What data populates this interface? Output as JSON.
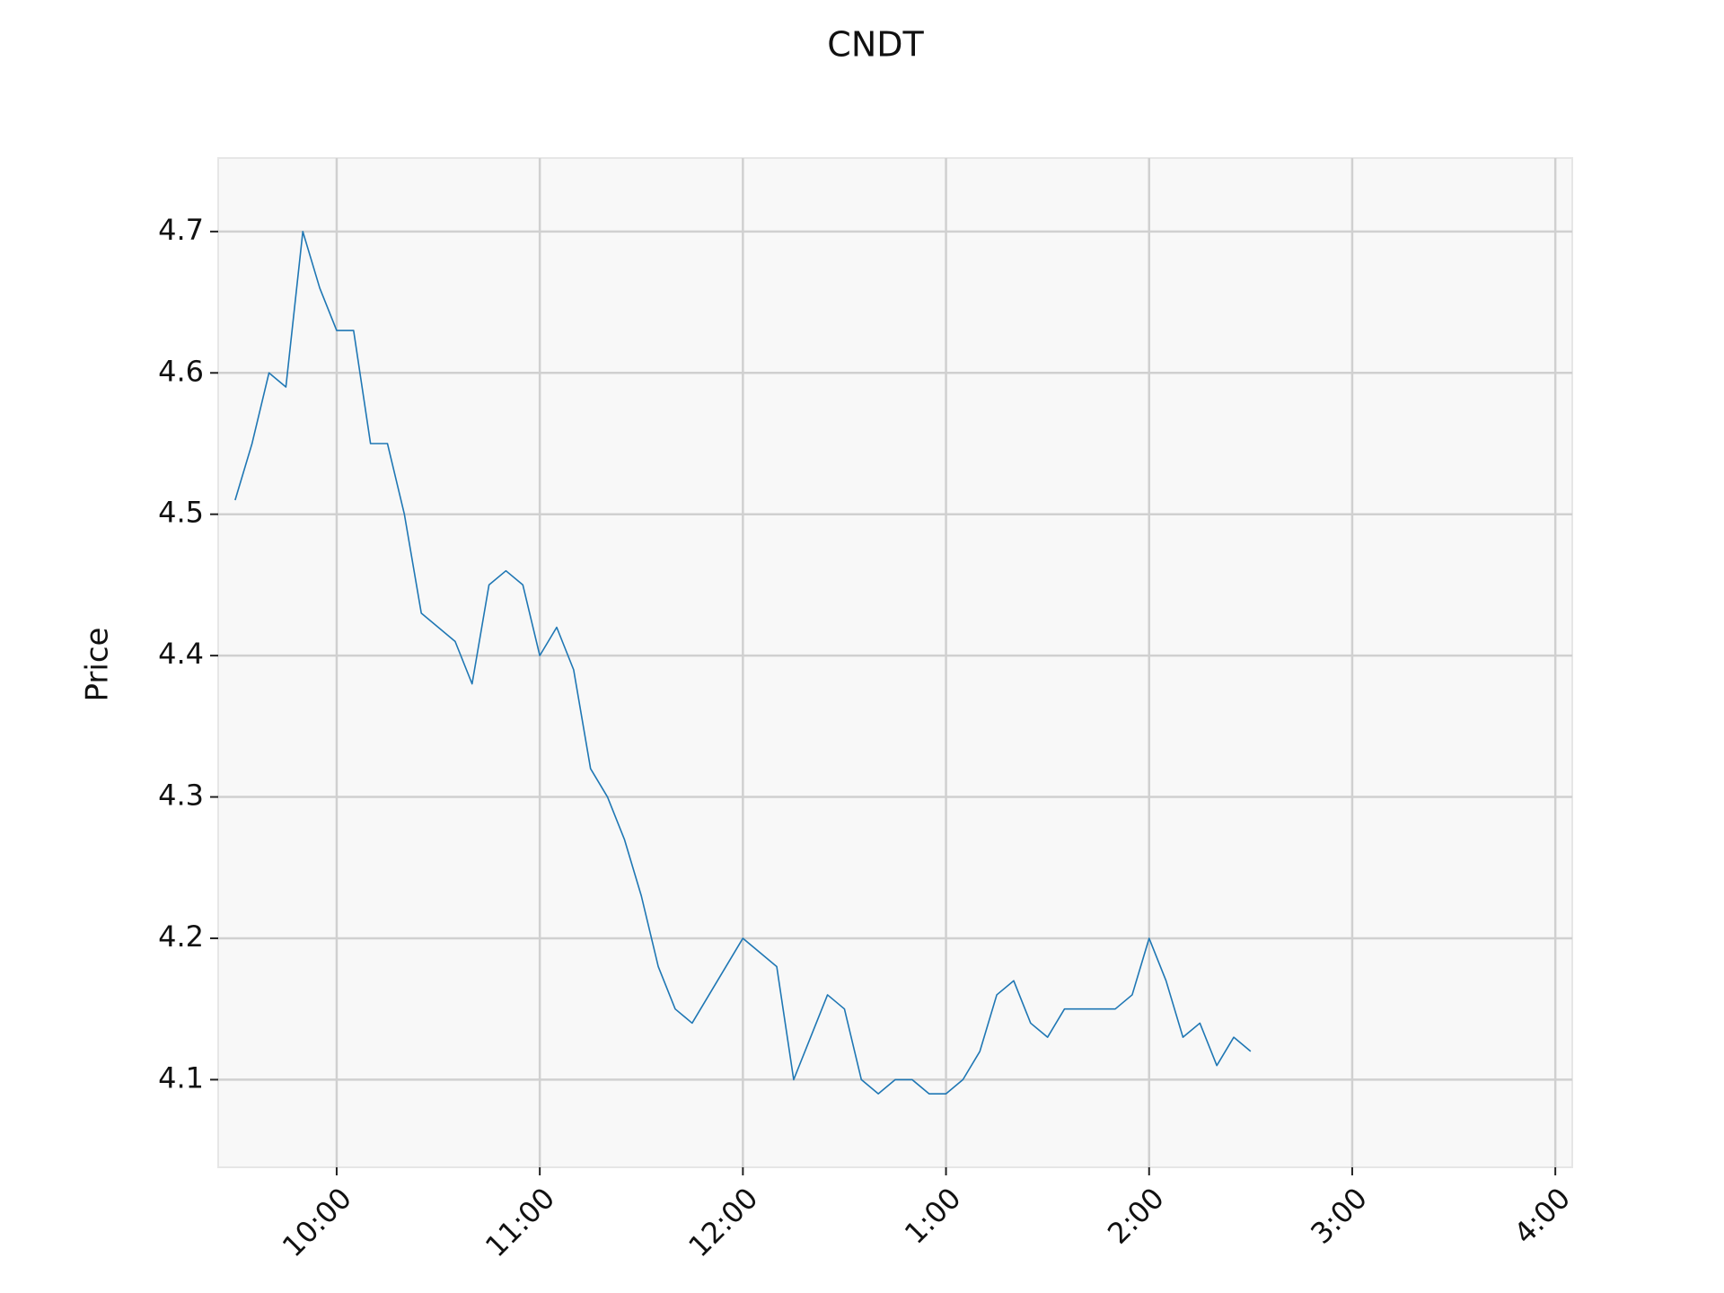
{
  "chart_data": {
    "type": "line",
    "title": "CNDT",
    "y_label": "Price",
    "x": [
      570,
      575,
      580,
      585,
      590,
      595,
      600,
      605,
      610,
      615,
      620,
      625,
      630,
      635,
      640,
      645,
      650,
      655,
      660,
      665,
      670,
      675,
      680,
      685,
      690,
      695,
      700,
      705,
      710,
      715,
      720,
      725,
      730,
      735,
      740,
      745,
      750,
      755,
      760,
      765,
      770,
      775,
      780,
      785,
      790,
      795,
      800,
      805,
      810,
      815,
      820,
      825,
      830,
      835,
      840,
      845,
      850,
      855,
      860,
      865,
      870
    ],
    "series": [
      {
        "name": "CNDT",
        "color": "#1f77b4",
        "values": [
          4.51,
          4.55,
          4.6,
          4.59,
          4.7,
          4.66,
          4.63,
          4.63,
          4.55,
          4.55,
          4.5,
          4.43,
          4.42,
          4.41,
          4.38,
          4.45,
          4.46,
          4.45,
          4.4,
          4.42,
          4.39,
          4.32,
          4.3,
          4.27,
          4.23,
          4.18,
          4.15,
          4.14,
          4.16,
          4.18,
          4.2,
          4.19,
          4.18,
          4.1,
          4.13,
          4.16,
          4.15,
          4.1,
          4.09,
          4.1,
          4.1,
          4.09,
          4.09,
          4.1,
          4.12,
          4.16,
          4.17,
          4.14,
          4.13,
          4.15,
          4.15,
          4.15,
          4.15,
          4.16,
          4.2,
          4.17,
          4.13,
          4.14,
          4.11,
          4.13,
          4.12
        ]
      }
    ],
    "xlim": [
      565,
      965
    ],
    "xticks": [
      {
        "value": 600,
        "label": "10:00"
      },
      {
        "value": 660,
        "label": "11:00"
      },
      {
        "value": 720,
        "label": "12:00"
      },
      {
        "value": 780,
        "label": "1:00"
      },
      {
        "value": 840,
        "label": "2:00"
      },
      {
        "value": 900,
        "label": "3:00"
      },
      {
        "value": 960,
        "label": "4:00"
      }
    ],
    "ylim": [
      4.038,
      4.752
    ],
    "yticks": [
      4.1,
      4.2,
      4.3,
      4.4,
      4.5,
      4.6,
      4.7
    ],
    "grid": true
  }
}
